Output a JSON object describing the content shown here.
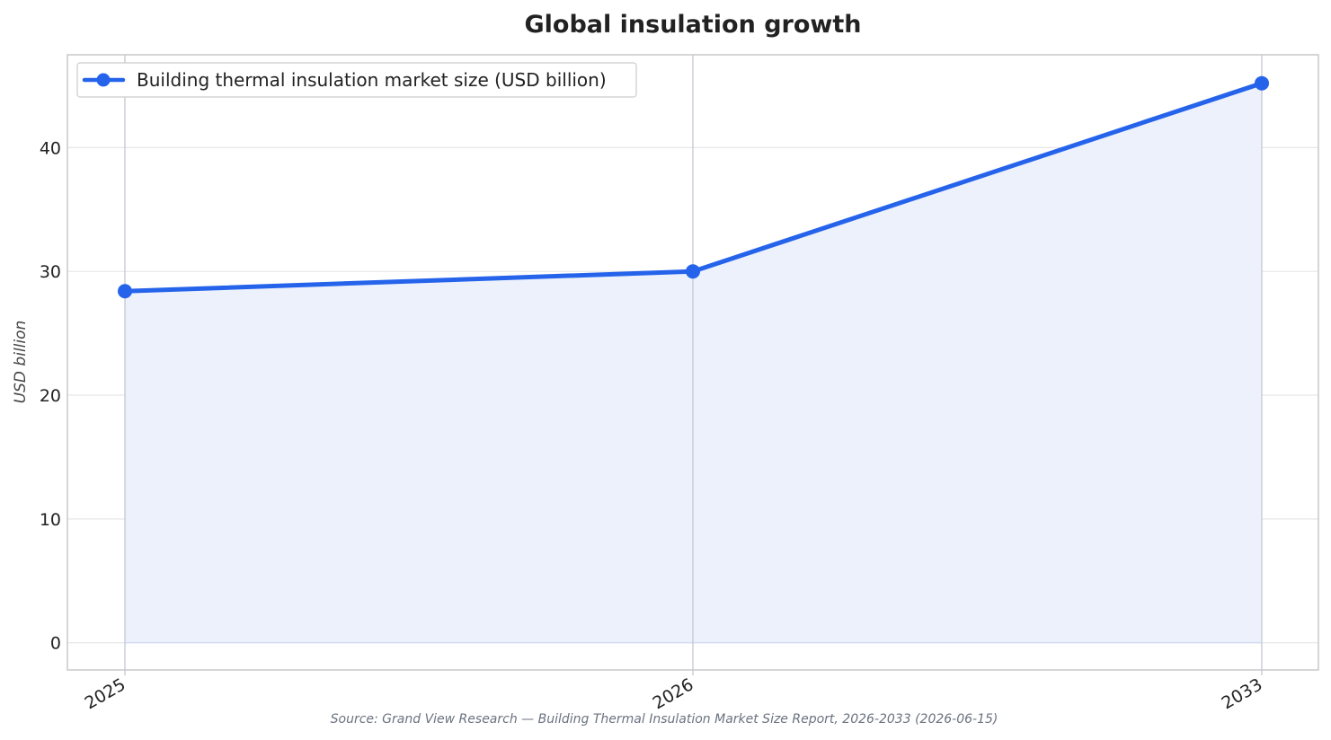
{
  "chart_data": {
    "type": "area",
    "title": "Global insulation growth",
    "xlabel": "",
    "ylabel": "USD billion",
    "categories": [
      "2025",
      "2026",
      "2033"
    ],
    "series": [
      {
        "name": "Building thermal insulation market size (USD billion)",
        "values": [
          28.4,
          30.0,
          45.2
        ],
        "color": "#2563eb",
        "fill": "#ecf1fc"
      }
    ],
    "ylim": [
      -2.2,
      47.5
    ],
    "yticks": [
      0,
      10,
      20,
      30,
      40
    ],
    "grid": true,
    "legend": "top-left",
    "source": "Source: Grand View Research — Building Thermal Insulation Market Size Report, 2026-2033 (2026-06-15)"
  }
}
